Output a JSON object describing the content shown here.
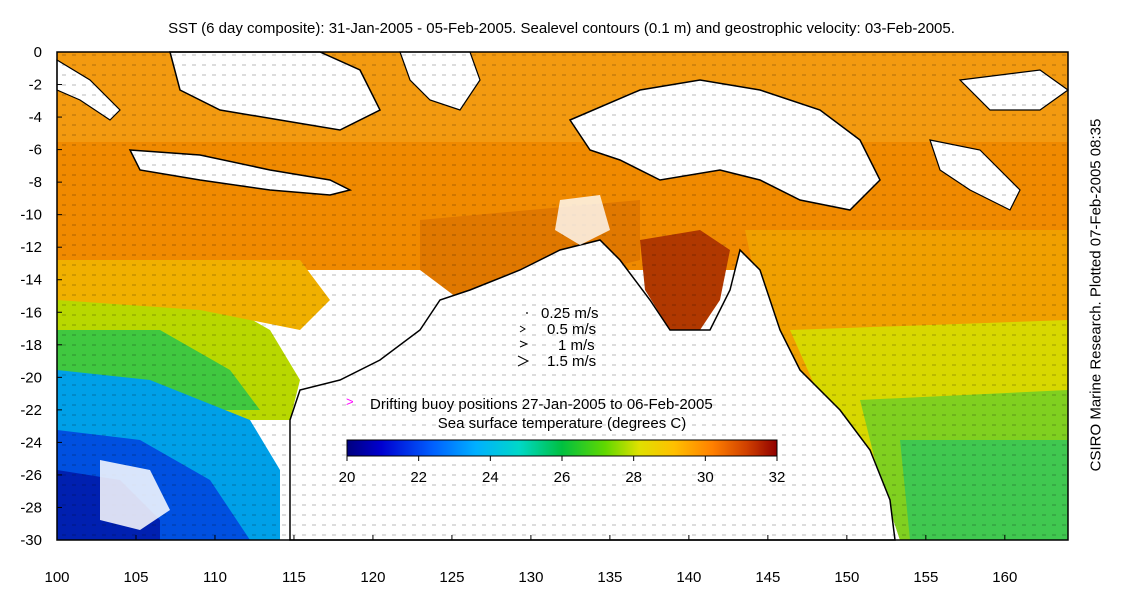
{
  "title": "SST (6 day composite): 31-Jan-2005 - 05-Feb-2005. Sealevel contours (0.1 m) and geostrophic velocity: 03-Feb-2005.",
  "side_label": "CSIRO Marine Research. Plotted 07-Feb-2005 08:35",
  "map": {
    "lon_range": [
      100,
      164
    ],
    "lat_range": [
      -30,
      0
    ],
    "x_ticks": [
      "100",
      "105",
      "110",
      "115",
      "120",
      "125",
      "130",
      "135",
      "140",
      "145",
      "150",
      "155",
      "160"
    ],
    "y_ticks": [
      "0",
      "-2",
      "-4",
      "-6",
      "-8",
      "-10",
      "-12",
      "-14",
      "-16",
      "-18",
      "-20",
      "-22",
      "-24",
      "-26",
      "-28",
      "-30"
    ]
  },
  "velocity_legend": [
    {
      "label": "0.25 m/s"
    },
    {
      "label": "0.5 m/s"
    },
    {
      "label": "1 m/s"
    },
    {
      "label": "1.5 m/s"
    }
  ],
  "buoy_legend": {
    "marker": ">",
    "label": "Drifting buoy positions 27-Jan-2005 to 06-Feb-2005",
    "color": "#ff00ff"
  },
  "colorbar": {
    "label": "Sea surface temperature (degrees C)",
    "ticks": [
      "20",
      "22",
      "24",
      "26",
      "28",
      "30",
      "32"
    ],
    "colors": [
      "#00007f",
      "#0000ff",
      "#0080ff",
      "#00c0ff",
      "#00e0c0",
      "#00c040",
      "#40d000",
      "#c0e000",
      "#ffe000",
      "#ffb000",
      "#ff8000",
      "#e05000",
      "#c02000",
      "#900000"
    ]
  }
}
